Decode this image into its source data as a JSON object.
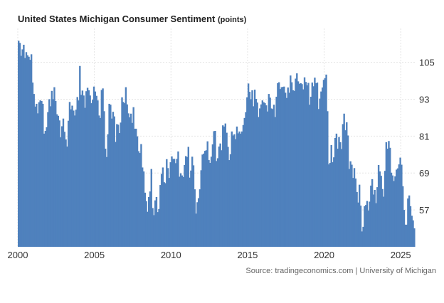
{
  "chart_data": {
    "type": "bar",
    "title": "United States Michigan Consumer Sentiment",
    "subtitle": "(points)",
    "source": "Source: tradingeconomics.com | University of Michigan",
    "color": "#4f81bd",
    "grid": true,
    "ylim": [
      45,
      116
    ],
    "yticks": [
      57,
      69,
      81,
      93,
      105
    ],
    "xlim": [
      2000,
      2025.92
    ],
    "xticks": [
      2000,
      2005,
      2010,
      2015,
      2020,
      2025
    ],
    "x": [
      "2000-01",
      "2000-02",
      "2000-03",
      "2000-04",
      "2000-05",
      "2000-06",
      "2000-07",
      "2000-08",
      "2000-09",
      "2000-10",
      "2000-11",
      "2000-12",
      "2001-01",
      "2001-02",
      "2001-03",
      "2001-04",
      "2001-05",
      "2001-06",
      "2001-07",
      "2001-08",
      "2001-09",
      "2001-10",
      "2001-11",
      "2001-12",
      "2002-01",
      "2002-02",
      "2002-03",
      "2002-04",
      "2002-05",
      "2002-06",
      "2002-07",
      "2002-08",
      "2002-09",
      "2002-10",
      "2002-11",
      "2002-12",
      "2003-01",
      "2003-02",
      "2003-03",
      "2003-04",
      "2003-05",
      "2003-06",
      "2003-07",
      "2003-08",
      "2003-09",
      "2003-10",
      "2003-11",
      "2003-12",
      "2004-01",
      "2004-02",
      "2004-03",
      "2004-04",
      "2004-05",
      "2004-06",
      "2004-07",
      "2004-08",
      "2004-09",
      "2004-10",
      "2004-11",
      "2004-12",
      "2005-01",
      "2005-02",
      "2005-03",
      "2005-04",
      "2005-05",
      "2005-06",
      "2005-07",
      "2005-08",
      "2005-09",
      "2005-10",
      "2005-11",
      "2005-12",
      "2006-01",
      "2006-02",
      "2006-03",
      "2006-04",
      "2006-05",
      "2006-06",
      "2006-07",
      "2006-08",
      "2006-09",
      "2006-10",
      "2006-11",
      "2006-12",
      "2007-01",
      "2007-02",
      "2007-03",
      "2007-04",
      "2007-05",
      "2007-06",
      "2007-07",
      "2007-08",
      "2007-09",
      "2007-10",
      "2007-11",
      "2007-12",
      "2008-01",
      "2008-02",
      "2008-03",
      "2008-04",
      "2008-05",
      "2008-06",
      "2008-07",
      "2008-08",
      "2008-09",
      "2008-10",
      "2008-11",
      "2008-12",
      "2009-01",
      "2009-02",
      "2009-03",
      "2009-04",
      "2009-05",
      "2009-06",
      "2009-07",
      "2009-08",
      "2009-09",
      "2009-10",
      "2009-11",
      "2009-12",
      "2010-01",
      "2010-02",
      "2010-03",
      "2010-04",
      "2010-05",
      "2010-06",
      "2010-07",
      "2010-08",
      "2010-09",
      "2010-10",
      "2010-11",
      "2010-12",
      "2011-01",
      "2011-02",
      "2011-03",
      "2011-04",
      "2011-05",
      "2011-06",
      "2011-07",
      "2011-08",
      "2011-09",
      "2011-10",
      "2011-11",
      "2011-12",
      "2012-01",
      "2012-02",
      "2012-03",
      "2012-04",
      "2012-05",
      "2012-06",
      "2012-07",
      "2012-08",
      "2012-09",
      "2012-10",
      "2012-11",
      "2012-12",
      "2013-01",
      "2013-02",
      "2013-03",
      "2013-04",
      "2013-05",
      "2013-06",
      "2013-07",
      "2013-08",
      "2013-09",
      "2013-10",
      "2013-11",
      "2013-12",
      "2014-01",
      "2014-02",
      "2014-03",
      "2014-04",
      "2014-05",
      "2014-06",
      "2014-07",
      "2014-08",
      "2014-09",
      "2014-10",
      "2014-11",
      "2014-12",
      "2015-01",
      "2015-02",
      "2015-03",
      "2015-04",
      "2015-05",
      "2015-06",
      "2015-07",
      "2015-08",
      "2015-09",
      "2015-10",
      "2015-11",
      "2015-12",
      "2016-01",
      "2016-02",
      "2016-03",
      "2016-04",
      "2016-05",
      "2016-06",
      "2016-07",
      "2016-08",
      "2016-09",
      "2016-10",
      "2016-11",
      "2016-12",
      "2017-01",
      "2017-02",
      "2017-03",
      "2017-04",
      "2017-05",
      "2017-06",
      "2017-07",
      "2017-08",
      "2017-09",
      "2017-10",
      "2017-11",
      "2017-12",
      "2018-01",
      "2018-02",
      "2018-03",
      "2018-04",
      "2018-05",
      "2018-06",
      "2018-07",
      "2018-08",
      "2018-09",
      "2018-10",
      "2018-11",
      "2018-12",
      "2019-01",
      "2019-02",
      "2019-03",
      "2019-04",
      "2019-05",
      "2019-06",
      "2019-07",
      "2019-08",
      "2019-09",
      "2019-10",
      "2019-11",
      "2019-12",
      "2020-01",
      "2020-02",
      "2020-03",
      "2020-04",
      "2020-05",
      "2020-06",
      "2020-07",
      "2020-08",
      "2020-09",
      "2020-10",
      "2020-11",
      "2020-12",
      "2021-01",
      "2021-02",
      "2021-03",
      "2021-04",
      "2021-05",
      "2021-06",
      "2021-07",
      "2021-08",
      "2021-09",
      "2021-10",
      "2021-11",
      "2021-12",
      "2022-01",
      "2022-02",
      "2022-03",
      "2022-04",
      "2022-05",
      "2022-06",
      "2022-07",
      "2022-08",
      "2022-09",
      "2022-10",
      "2022-11",
      "2022-12",
      "2023-01",
      "2023-02",
      "2023-03",
      "2023-04",
      "2023-05",
      "2023-06",
      "2023-07",
      "2023-08",
      "2023-09",
      "2023-10",
      "2023-11",
      "2023-12",
      "2024-01",
      "2024-02",
      "2024-03",
      "2024-04",
      "2024-05",
      "2024-06",
      "2024-07",
      "2024-08",
      "2024-09",
      "2024-10",
      "2024-11",
      "2024-12",
      "2025-01",
      "2025-02",
      "2025-03",
      "2025-04",
      "2025-05",
      "2025-06",
      "2025-07",
      "2025-08",
      "2025-09",
      "2025-10",
      "2025-11"
    ],
    "values": [
      112.0,
      111.3,
      107.1,
      109.2,
      110.7,
      106.4,
      108.3,
      107.3,
      106.8,
      105.8,
      107.6,
      98.4,
      94.7,
      90.6,
      91.5,
      88.4,
      92.0,
      92.6,
      92.4,
      91.5,
      81.8,
      82.7,
      83.9,
      88.8,
      93.0,
      90.7,
      95.7,
      93.0,
      96.9,
      92.4,
      88.1,
      87.6,
      86.1,
      80.6,
      84.2,
      86.7,
      82.4,
      79.9,
      77.6,
      86.0,
      92.1,
      89.7,
      90.9,
      89.3,
      87.7,
      89.6,
      93.7,
      92.6,
      103.8,
      94.4,
      95.8,
      94.2,
      90.2,
      95.6,
      96.7,
      95.9,
      94.2,
      91.7,
      92.8,
      97.1,
      95.5,
      94.1,
      92.6,
      87.7,
      86.9,
      96.0,
      96.5,
      89.1,
      76.9,
      74.2,
      81.6,
      91.5,
      91.2,
      86.7,
      88.9,
      87.4,
      79.1,
      84.9,
      84.7,
      82.0,
      85.4,
      93.6,
      92.1,
      91.7,
      96.9,
      91.3,
      88.4,
      87.1,
      88.3,
      85.3,
      90.4,
      83.4,
      83.4,
      80.9,
      76.1,
      75.5,
      78.4,
      70.8,
      69.5,
      62.6,
      59.8,
      56.4,
      61.2,
      63.0,
      70.3,
      57.6,
      55.3,
      60.1,
      61.2,
      56.3,
      57.3,
      65.1,
      68.7,
      70.8,
      66.0,
      65.7,
      73.5,
      70.6,
      67.4,
      72.5,
      74.4,
      73.6,
      73.6,
      72.2,
      73.6,
      76.0,
      67.8,
      68.9,
      68.2,
      67.7,
      71.6,
      74.5,
      74.2,
      77.5,
      67.5,
      69.8,
      74.3,
      71.5,
      63.7,
      55.8,
      59.5,
      60.8,
      63.7,
      69.9,
      75.0,
      75.3,
      76.2,
      76.4,
      79.3,
      73.2,
      72.3,
      74.3,
      78.3,
      82.6,
      82.7,
      72.9,
      73.8,
      77.6,
      78.6,
      76.4,
      84.5,
      84.1,
      85.1,
      82.1,
      77.5,
      73.2,
      75.1,
      82.5,
      81.2,
      81.6,
      80.0,
      84.1,
      81.9,
      82.5,
      81.8,
      82.5,
      84.6,
      86.9,
      88.8,
      93.6,
      98.1,
      95.4,
      93.0,
      95.9,
      90.7,
      96.1,
      93.1,
      91.9,
      87.2,
      90.0,
      91.3,
      92.6,
      92.0,
      91.7,
      91.0,
      89.0,
      94.7,
      93.5,
      90.0,
      89.8,
      91.2,
      87.2,
      93.8,
      98.2,
      98.5,
      96.3,
      96.9,
      97.0,
      97.1,
      95.1,
      93.4,
      96.8,
      95.1,
      100.7,
      98.5,
      95.9,
      95.7,
      99.7,
      101.4,
      98.8,
      98.0,
      98.2,
      97.9,
      96.2,
      100.1,
      98.6,
      97.5,
      98.3,
      91.2,
      93.8,
      98.4,
      97.2,
      100.0,
      98.2,
      98.4,
      89.8,
      93.2,
      95.5,
      96.8,
      99.3,
      99.8,
      101.0,
      89.1,
      71.8,
      72.3,
      78.1,
      72.5,
      74.1,
      80.4,
      81.8,
      76.9,
      80.7,
      79.0,
      76.8,
      84.9,
      88.3,
      82.9,
      85.5,
      81.2,
      70.3,
      72.8,
      71.7,
      67.4,
      70.6,
      67.2,
      62.8,
      59.4,
      65.2,
      58.4,
      50.0,
      51.5,
      58.2,
      58.6,
      59.9,
      56.8,
      59.7,
      64.9,
      67.0,
      62.0,
      63.5,
      59.2,
      64.4,
      71.6,
      69.5,
      68.1,
      63.8,
      61.3,
      69.7,
      79.0,
      76.9,
      79.4,
      77.2,
      69.1,
      68.2,
      66.4,
      67.9,
      70.1,
      70.5,
      71.8,
      74.0,
      71.7,
      64.7,
      57.0,
      52.2,
      52.2,
      60.7,
      61.7,
      58.2,
      55.1,
      53.6,
      51.0
    ]
  }
}
